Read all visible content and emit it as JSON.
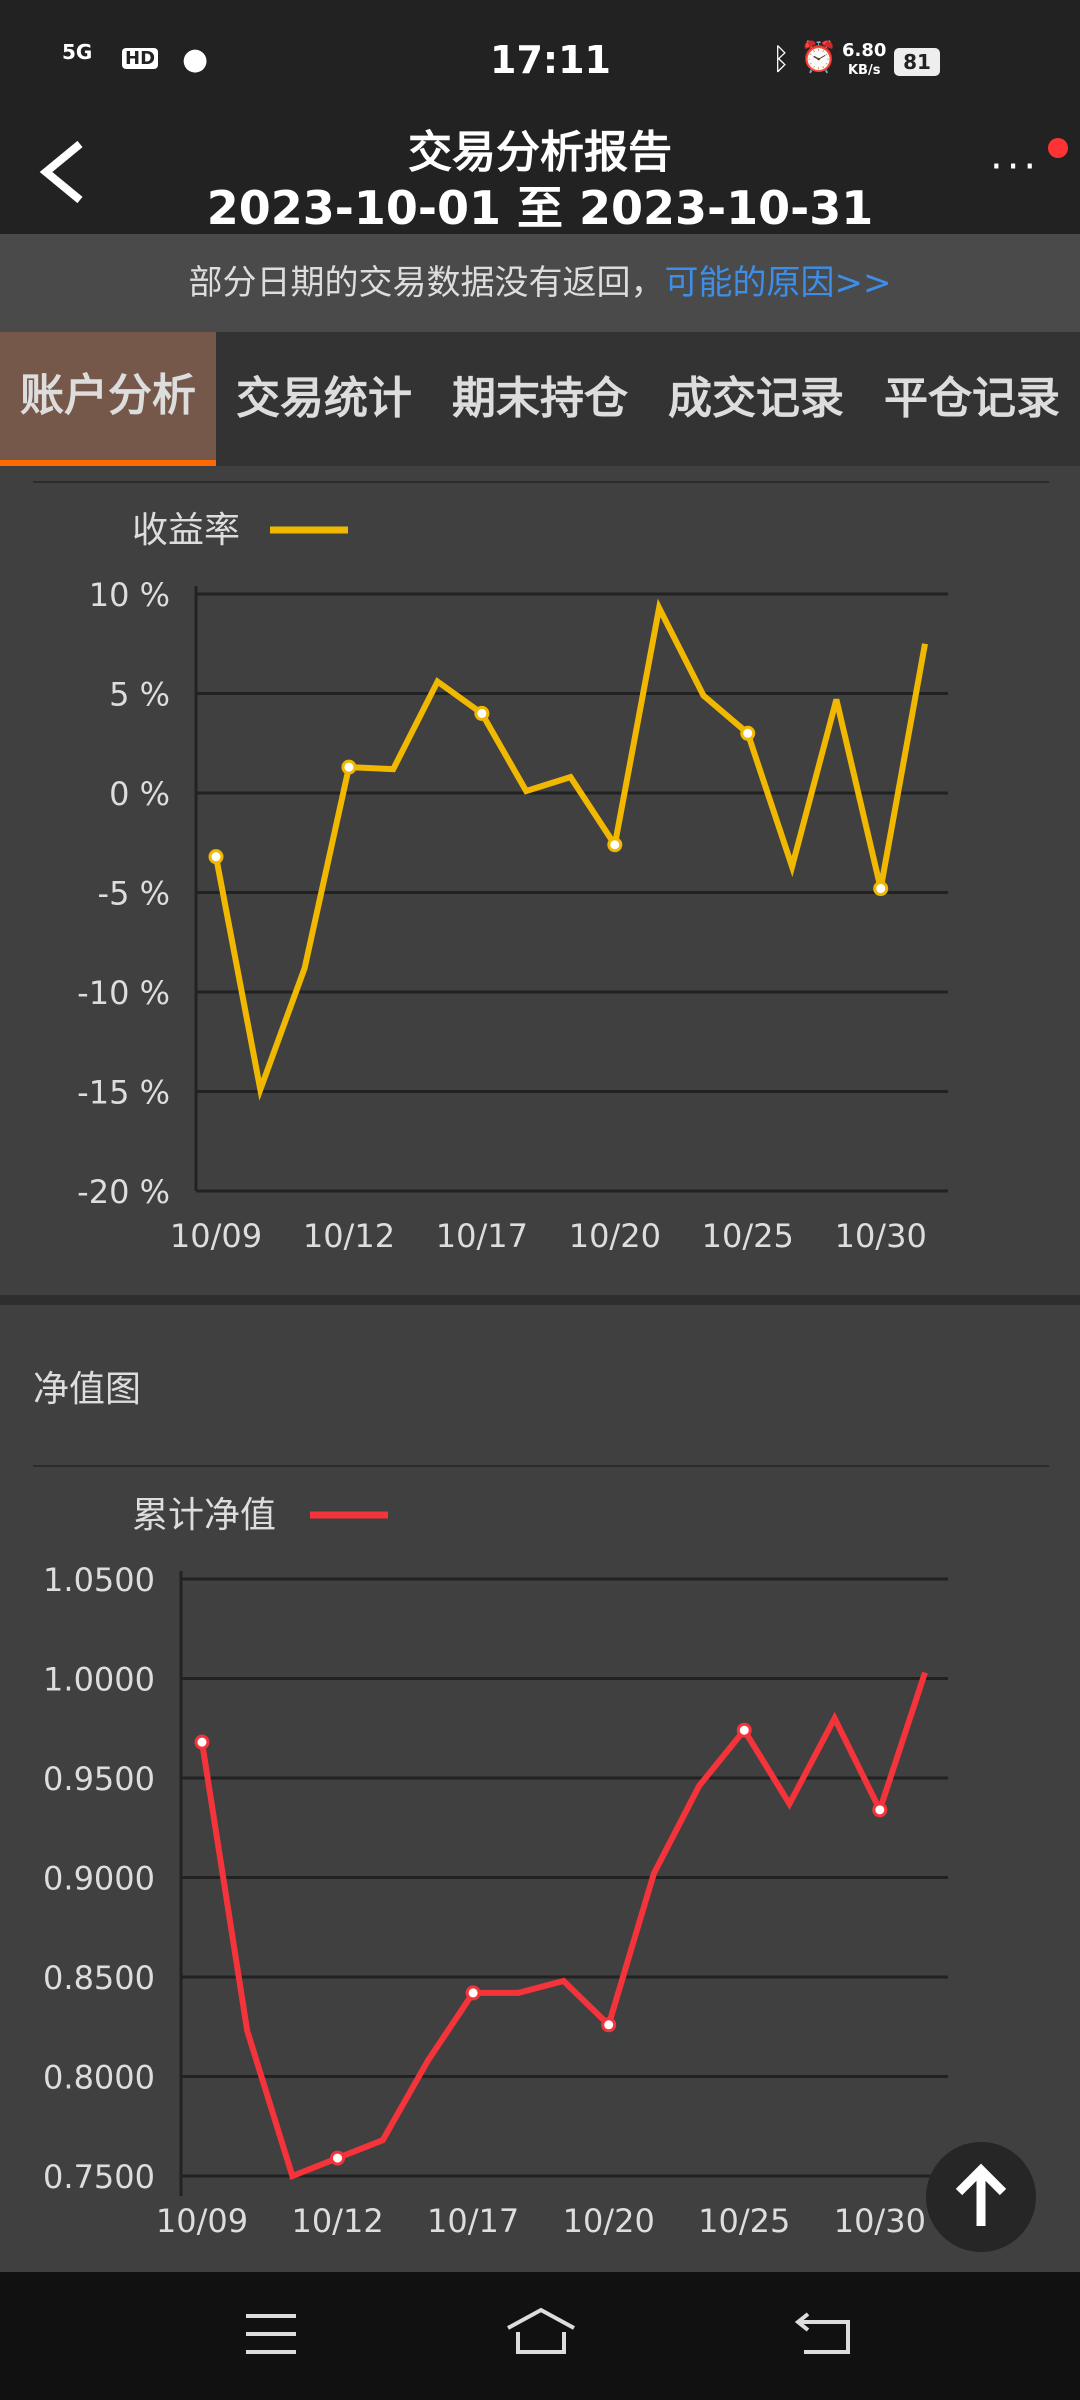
{
  "status_bar": {
    "network": "5G",
    "hd": "HD",
    "time": "17:11",
    "speed": "6.80",
    "speed_unit": "KB/s",
    "battery": "81"
  },
  "header": {
    "title": "交易分析报告",
    "subtitle": "2023-10-01 至 2023-10-31",
    "back_icon": "chevron-left-icon",
    "more_icon": "more-dots-icon"
  },
  "notice": {
    "text": "部分日期的交易数据没有返回，",
    "link": "可能的原因>>",
    "link_color": "#3d8ee8"
  },
  "tabs": [
    {
      "label": "账户分析",
      "active": true
    },
    {
      "label": "交易统计"
    },
    {
      "label": "期末持仓"
    },
    {
      "label": "成交记录"
    },
    {
      "label": "平仓记录"
    }
  ],
  "section2_title": "净值图",
  "chart_data": [
    {
      "type": "line",
      "legend": "收益率",
      "color": "#f0b800",
      "ylim": [
        -20,
        10
      ],
      "yticks": [
        10,
        5,
        0,
        -5,
        -10,
        -15,
        -20
      ],
      "ytick_labels": [
        "10 %",
        "5 %",
        "0 %",
        "-5 %",
        "-10 %",
        "-15 %",
        "-20 %"
      ],
      "xtick_labels": [
        "10/09",
        "10/12",
        "10/17",
        "10/20",
        "10/25",
        "10/30"
      ],
      "xtick_index": [
        0,
        3,
        6,
        9,
        12,
        15
      ],
      "values": [
        -3.2,
        -14.9,
        -8.8,
        1.3,
        1.2,
        5.6,
        4.0,
        0.1,
        0.8,
        -2.6,
        9.3,
        4.9,
        3.0,
        -3.7,
        4.7,
        -4.8,
        7.5
      ],
      "legend_position": "top-left",
      "grid": true
    },
    {
      "type": "line",
      "legend": "累计净值",
      "color": "#f5333a",
      "ylim": [
        0.75,
        1.05
      ],
      "yticks": [
        1.05,
        1.0,
        0.95,
        0.9,
        0.85,
        0.8,
        0.75
      ],
      "ytick_labels": [
        "1.0500",
        "1.0000",
        "0.9500",
        "0.9000",
        "0.8500",
        "0.8000",
        "0.7500"
      ],
      "xtick_labels": [
        "10/09",
        "10/12",
        "10/17",
        "10/20",
        "10/25",
        "10/30"
      ],
      "xtick_index": [
        0,
        3,
        6,
        9,
        12,
        15
      ],
      "values": [
        0.968,
        0.823,
        0.75,
        0.759,
        0.768,
        0.808,
        0.842,
        0.842,
        0.848,
        0.826,
        0.902,
        0.946,
        0.974,
        0.937,
        0.98,
        0.934,
        1.003
      ],
      "legend_position": "top-left",
      "grid": true
    }
  ],
  "scroll_top_icon": "arrow-up-icon",
  "nav_bar": {
    "menu_icon": "menu-icon",
    "home_icon": "home-icon",
    "back_icon": "back-icon"
  }
}
